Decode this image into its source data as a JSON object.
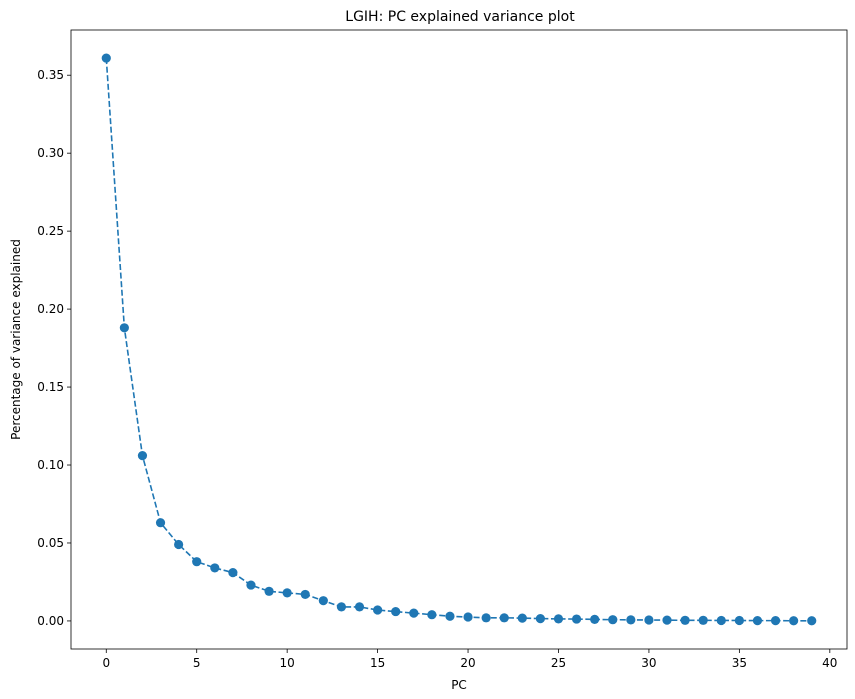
{
  "chart_data": {
    "type": "line",
    "title": "LGIH: PC explained variance plot",
    "xlabel": "PC",
    "ylabel": "Percentage of variance explained",
    "xlim": [
      -1.95,
      40.95
    ],
    "ylim": [
      -0.018,
      0.379
    ],
    "xticks": [
      0,
      5,
      10,
      15,
      20,
      25,
      30,
      35,
      40
    ],
    "xtick_labels": [
      "0",
      "5",
      "10",
      "15",
      "20",
      "25",
      "30",
      "35",
      "40"
    ],
    "yticks": [
      0.0,
      0.05,
      0.1,
      0.15,
      0.2,
      0.25,
      0.3,
      0.35
    ],
    "ytick_labels": [
      "0.00",
      "0.05",
      "0.10",
      "0.15",
      "0.20",
      "0.25",
      "0.30",
      "0.35"
    ],
    "grid": false,
    "legend": "none",
    "line_style": "dashed",
    "marker": "circle",
    "color": "#1f77b4",
    "series": [
      {
        "x": [
          0,
          1,
          2,
          3,
          4,
          5,
          6,
          7,
          8,
          9,
          10,
          11,
          12,
          13,
          14,
          15,
          16,
          17,
          18,
          19,
          20,
          21,
          22,
          23,
          24,
          25,
          26,
          27,
          28,
          29,
          30,
          31,
          32,
          33,
          34,
          35,
          36,
          37,
          38,
          39
        ],
        "values": [
          0.361,
          0.188,
          0.106,
          0.063,
          0.049,
          0.038,
          0.034,
          0.031,
          0.023,
          0.019,
          0.018,
          0.017,
          0.013,
          0.009,
          0.009,
          0.007,
          0.006,
          0.005,
          0.004,
          0.003,
          0.0025,
          0.002,
          0.002,
          0.0018,
          0.0015,
          0.0013,
          0.0012,
          0.001,
          0.0008,
          0.0007,
          0.0006,
          0.0005,
          0.0004,
          0.0004,
          0.0003,
          0.0003,
          0.0002,
          0.0002,
          0.0001,
          0.0001
        ]
      }
    ]
  }
}
